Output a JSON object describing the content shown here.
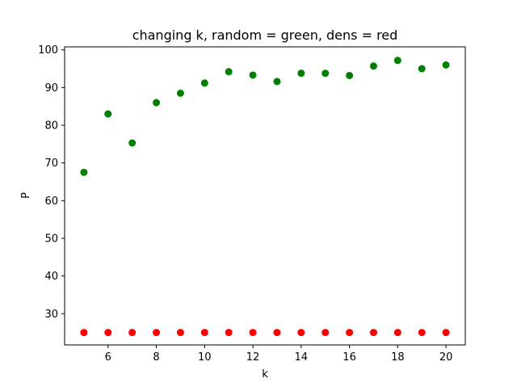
{
  "chart_data": {
    "type": "scatter",
    "title": "changing k, random = green, dens = red",
    "xlabel": "k",
    "ylabel": "P",
    "xlim": [
      4.2,
      20.8
    ],
    "ylim": [
      21.7,
      100.8
    ],
    "xticks": [
      6,
      8,
      10,
      12,
      14,
      16,
      18,
      20
    ],
    "yticks": [
      30,
      40,
      50,
      60,
      70,
      80,
      90,
      100
    ],
    "grid": false,
    "series": [
      {
        "color": "#008000",
        "x": [
          5,
          6,
          7,
          8,
          9,
          10,
          11,
          12,
          13,
          14,
          15,
          16,
          17,
          18,
          19,
          20
        ],
        "y": [
          67.5,
          83.0,
          75.3,
          86.0,
          88.5,
          91.2,
          94.2,
          93.3,
          91.6,
          93.8,
          93.8,
          93.2,
          95.7,
          97.2,
          95.0,
          96.0
        ]
      },
      {
        "color": "#ff0000",
        "x": [
          5,
          6,
          7,
          8,
          9,
          10,
          11,
          12,
          13,
          14,
          15,
          16,
          17,
          18,
          19,
          20
        ],
        "y": [
          25,
          25,
          25,
          25,
          25,
          25,
          25,
          25,
          25,
          25,
          25,
          25,
          25,
          25,
          25,
          25
        ]
      }
    ]
  }
}
